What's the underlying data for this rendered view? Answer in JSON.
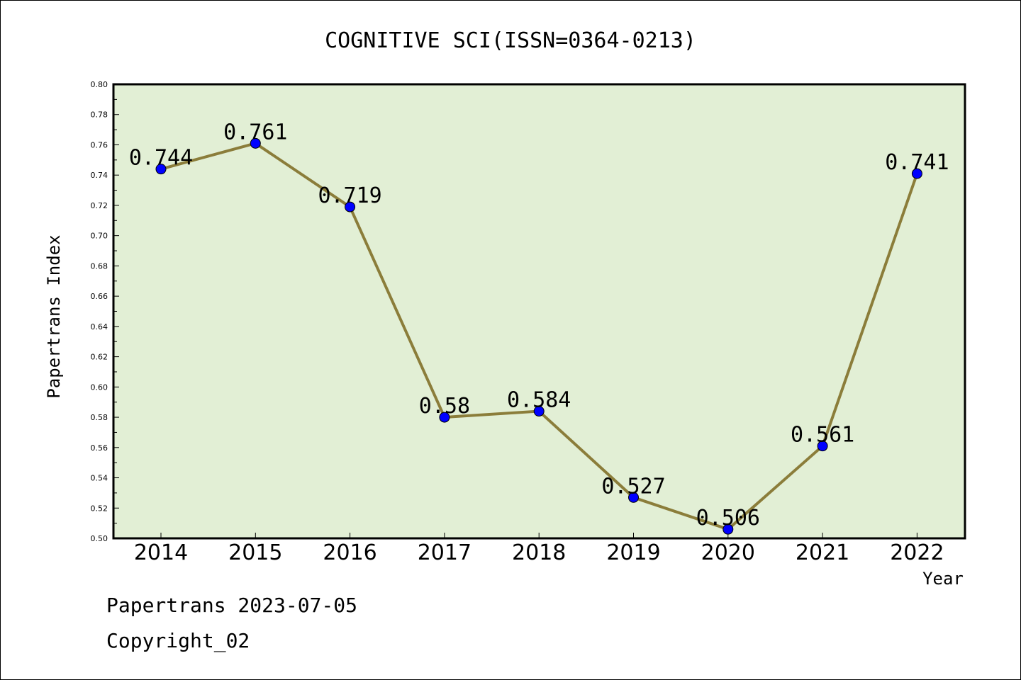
{
  "chart_data": {
    "type": "line",
    "title": "COGNITIVE SCI(ISSN=0364-0213)",
    "xlabel": "Year",
    "ylabel": "Papertrans Index",
    "categories": [
      "2014",
      "2015",
      "2016",
      "2017",
      "2018",
      "2019",
      "2020",
      "2021",
      "2022"
    ],
    "values": [
      0.744,
      0.761,
      0.719,
      0.58,
      0.584,
      0.527,
      0.506,
      0.561,
      0.741
    ],
    "data_labels": [
      "0.744",
      "0.761",
      "0.719",
      "0.58",
      "0.584",
      "0.527",
      "0.506",
      "0.561",
      "0.741"
    ],
    "ylim": [
      0.5,
      0.8
    ],
    "yticks": [
      "0.50",
      "0.52",
      "0.54",
      "0.56",
      "0.58",
      "0.60",
      "0.62",
      "0.64",
      "0.66",
      "0.68",
      "0.70",
      "0.72",
      "0.74",
      "0.76",
      "0.78",
      "0.80"
    ],
    "grid": false,
    "colors": {
      "plot_bg": "#e2efd5",
      "line": "#8b7d3a",
      "marker": "#0000ff"
    }
  },
  "footer": {
    "line1": "Papertrans 2023-07-05",
    "line2": "Copyright_02"
  }
}
